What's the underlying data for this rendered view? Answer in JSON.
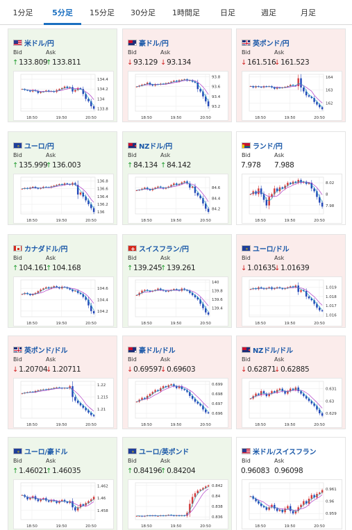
{
  "tabs": [
    {
      "label": "1分足",
      "active": false
    },
    {
      "label": "5分足",
      "active": true
    },
    {
      "label": "15分足",
      "active": false
    },
    {
      "label": "30分足",
      "active": false
    },
    {
      "label": "1時間足",
      "active": false
    },
    {
      "label": "日足",
      "active": false
    },
    {
      "label": "週足",
      "active": false
    },
    {
      "label": "月足",
      "active": false
    }
  ],
  "labels": {
    "bid": "Bid",
    "ask": "Ask"
  },
  "colors": {
    "accent": "#1a6fc0",
    "up_bg": "#eef6ea",
    "down_bg": "#fbeceb",
    "up_arrow": "#1c9a2a",
    "down_arrow": "#d02020",
    "up_candle": "#d23a3a",
    "down_candle": "#2247b8",
    "ma1": "#b03cc8",
    "ma2": "#18a0b8"
  },
  "cards": [
    {
      "pair": "米ドル/円",
      "flag": "us",
      "state": "up",
      "bid_dir": "up",
      "ask_dir": "up",
      "bid": "133.809",
      "ask": "133.811",
      "chart": {
        "xlabels": [
          "18:50",
          "19:50",
          "20:50"
        ],
        "ylabels": [
          "134.4",
          "134.2",
          "134",
          "133.8"
        ],
        "ylim": [
          133.75,
          134.5
        ],
        "closes": [
          134.2,
          134.18,
          134.17,
          134.15,
          134.18,
          134.16,
          134.12,
          134.14,
          134.15,
          134.17,
          134.15,
          134.16,
          134.14,
          134.18,
          134.2,
          134.22,
          134.25,
          134.22,
          134.24,
          134.15,
          134.18,
          134.22,
          134.2,
          134.1,
          134.0,
          133.95,
          133.85,
          133.8
        ]
      }
    },
    {
      "pair": "豪ドル/円",
      "flag": "au",
      "state": "down",
      "bid_dir": "down",
      "ask_dir": "down",
      "bid": "93.129",
      "ask": "93.134",
      "chart": {
        "xlabels": [
          "18:50",
          "19:50",
          "20:50"
        ],
        "ylabels": [
          "93.8",
          "93.6",
          "93.4",
          "93.2"
        ],
        "ylim": [
          93.1,
          93.85
        ],
        "closes": [
          93.6,
          93.62,
          93.64,
          93.65,
          93.68,
          93.64,
          93.62,
          93.65,
          93.64,
          93.66,
          93.65,
          93.67,
          93.68,
          93.7,
          93.72,
          93.7,
          93.73,
          93.74,
          93.75,
          93.72,
          93.73,
          93.7,
          93.68,
          93.55,
          93.5,
          93.4,
          93.3,
          93.2
        ]
      }
    },
    {
      "pair": "英ポンド/円",
      "flag": "gb",
      "state": "down",
      "bid_dir": "down",
      "ask_dir": "down",
      "bid": "161.516",
      "ask": "161.523",
      "chart": {
        "xlabels": [
          "18:50",
          "19:50",
          "20:50"
        ],
        "ylabels": [
          "164",
          "163",
          "162"
        ],
        "ylim": [
          161.4,
          164.2
        ],
        "closes": [
          163.3,
          163.2,
          163.3,
          163.25,
          163.2,
          163.3,
          163.25,
          163.3,
          163.2,
          163.1,
          163.2,
          163.15,
          163.2,
          163.25,
          163.3,
          163.4,
          163.35,
          163.3,
          163.9,
          163.2,
          162.9,
          162.6,
          162.5,
          162.4,
          162.1,
          161.9,
          161.7,
          161.55
        ]
      }
    },
    {
      "pair": "ユーロ/円",
      "flag": "eu",
      "state": "up",
      "bid_dir": "up",
      "ask_dir": "up",
      "bid": "135.999",
      "ask": "136.003",
      "chart": {
        "xlabels": [
          "18:50",
          "19:50",
          "20:50"
        ],
        "ylabels": [
          "136.8",
          "136.6",
          "136.4",
          "136.2",
          "136"
        ],
        "ylim": [
          135.95,
          136.9
        ],
        "closes": [
          136.6,
          136.62,
          136.6,
          136.63,
          136.65,
          136.62,
          136.6,
          136.62,
          136.65,
          136.64,
          136.63,
          136.66,
          136.68,
          136.7,
          136.72,
          136.7,
          136.74,
          136.72,
          136.7,
          136.75,
          136.7,
          136.45,
          136.5,
          136.4,
          136.3,
          136.2,
          136.1,
          136.0
        ]
      }
    },
    {
      "pair": "NZドル/円",
      "flag": "nz",
      "state": "up",
      "bid_dir": "up",
      "ask_dir": "up",
      "bid": "84.134",
      "ask": "84.142",
      "chart": {
        "xlabels": [
          "18:50",
          "19:50",
          "20:50"
        ],
        "ylabels": [
          "84.6",
          "84.4",
          "84.2"
        ],
        "ylim": [
          84.1,
          84.8
        ],
        "closes": [
          84.55,
          84.56,
          84.58,
          84.6,
          84.57,
          84.55,
          84.58,
          84.6,
          84.62,
          84.6,
          84.58,
          84.6,
          84.62,
          84.65,
          84.68,
          84.65,
          84.67,
          84.7,
          84.72,
          84.68,
          84.6,
          84.62,
          84.5,
          84.45,
          84.4,
          84.3,
          84.2,
          84.14
        ]
      }
    },
    {
      "pair": "ランド/円",
      "flag": "za",
      "state": "flat",
      "bid_dir": "none",
      "ask_dir": "none",
      "bid": "7.978",
      "ask": "7.988",
      "chart": {
        "xlabels": [
          "18:50",
          "19:50",
          "20:50"
        ],
        "ylabels": [
          "8.02",
          "8",
          "7.98"
        ],
        "ylim": [
          7.965,
          8.03
        ],
        "closes": [
          8.0,
          8.005,
          8.0,
          8.01,
          8.0,
          7.99,
          7.98,
          7.995,
          8.0,
          8.01,
          8.005,
          8.012,
          8.01,
          8.015,
          8.02,
          8.018,
          8.022,
          8.02,
          8.025,
          8.02,
          8.022,
          8.018,
          8.02,
          8.01,
          8.005,
          7.995,
          7.985,
          7.978
        ]
      }
    },
    {
      "pair": "カナダドル/円",
      "flag": "ca",
      "state": "up",
      "bid_dir": "up",
      "ask_dir": "up",
      "bid": "104.161",
      "ask": "104.168",
      "chart": {
        "xlabels": [
          "18:50",
          "19:50",
          "20:50"
        ],
        "ylabels": [
          "104.6",
          "104.4",
          "104.2"
        ],
        "ylim": [
          104.1,
          104.75
        ],
        "closes": [
          104.5,
          104.52,
          104.5,
          104.48,
          104.5,
          104.52,
          104.55,
          104.58,
          104.6,
          104.62,
          104.6,
          104.62,
          104.64,
          104.62,
          104.6,
          104.63,
          104.62,
          104.6,
          104.58,
          104.55,
          104.56,
          104.52,
          104.5,
          104.45,
          104.4,
          104.3,
          104.2,
          104.16
        ]
      }
    },
    {
      "pair": "スイスフラン/円",
      "flag": "ch",
      "state": "up",
      "bid_dir": "up",
      "ask_dir": "up",
      "bid": "139.245",
      "ask": "139.261",
      "chart": {
        "xlabels": [
          "18:50",
          "19:50",
          "20:50"
        ],
        "ylabels": [
          "140",
          "139.8",
          "139.6",
          "139.4"
        ],
        "ylim": [
          139.2,
          140.05
        ],
        "closes": [
          139.7,
          139.75,
          139.8,
          139.82,
          139.8,
          139.78,
          139.8,
          139.82,
          139.85,
          139.82,
          139.8,
          139.78,
          139.8,
          139.82,
          139.84,
          139.82,
          139.8,
          139.85,
          139.82,
          139.8,
          139.75,
          139.7,
          139.65,
          139.6,
          139.5,
          139.4,
          139.3,
          139.25
        ]
      }
    },
    {
      "pair": "ユーロ/ドル",
      "flag": "eu",
      "state": "down",
      "bid_dir": "down",
      "ask_dir": "down",
      "bid": "1.01635",
      "ask": "1.01639",
      "chart": {
        "xlabels": [
          "18:50",
          "19:50",
          "20:50"
        ],
        "ylabels": [
          "1.019",
          "1.018",
          "1.017",
          "1.016"
        ],
        "ylim": [
          1.0158,
          1.0198
        ],
        "closes": [
          1.0188,
          1.0189,
          1.0188,
          1.019,
          1.0189,
          1.0188,
          1.0189,
          1.019,
          1.0188,
          1.0189,
          1.019,
          1.0189,
          1.0188,
          1.0189,
          1.019,
          1.0191,
          1.019,
          1.0192,
          1.0185,
          1.0187,
          1.0186,
          1.018,
          1.0178,
          1.0176,
          1.0172,
          1.0168,
          1.0165,
          1.0164
        ]
      }
    },
    {
      "pair": "英ポンド/ドル",
      "flag": "gb",
      "state": "down",
      "bid_dir": "down",
      "ask_dir": "down",
      "bid": "1.20704",
      "ask": "1.20711",
      "chart": {
        "xlabels": [
          "18:50",
          "19:50",
          "20:50"
        ],
        "ylabels": [
          "1.22",
          "1.215",
          "1.21"
        ],
        "ylim": [
          1.2062,
          1.2215
        ],
        "closes": [
          1.2165,
          1.2168,
          1.217,
          1.2172,
          1.217,
          1.2175,
          1.2178,
          1.218,
          1.2182,
          1.218,
          1.2184,
          1.2185,
          1.2188,
          1.219,
          1.2188,
          1.2185,
          1.2188,
          1.2186,
          1.2195,
          1.215,
          1.2135,
          1.2125,
          1.2115,
          1.2105,
          1.2095,
          1.2085,
          1.2075,
          1.207
        ]
      }
    },
    {
      "pair": "豪ドル/ドル",
      "flag": "au",
      "state": "down",
      "bid_dir": "down",
      "ask_dir": "down",
      "bid": "0.69597",
      "ask": "0.69603",
      "chart": {
        "xlabels": [
          "18:50",
          "19:50",
          "20:50"
        ],
        "ylabels": [
          "0.699",
          "0.698",
          "0.697",
          "0.696"
        ],
        "ylim": [
          0.6955,
          0.6993
        ],
        "closes": [
          0.6972,
          0.6974,
          0.6976,
          0.6975,
          0.6978,
          0.698,
          0.6982,
          0.6984,
          0.6983,
          0.6986,
          0.6988,
          0.6987,
          0.6989,
          0.699,
          0.6988,
          0.6986,
          0.6988,
          0.6985,
          0.6984,
          0.6982,
          0.6978,
          0.6975,
          0.6972,
          0.697,
          0.6968,
          0.6964,
          0.6961,
          0.696
        ]
      }
    },
    {
      "pair": "NZドル/ドル",
      "flag": "nz",
      "state": "down",
      "bid_dir": "down",
      "ask_dir": "down",
      "bid": "0.62871",
      "ask": "0.62885",
      "chart": {
        "xlabels": [
          "18:50",
          "19:50",
          "20:50"
        ],
        "ylabels": [
          "0.631",
          "0.63",
          "0.629"
        ],
        "ylim": [
          0.6286,
          0.6316
        ],
        "closes": [
          0.6302,
          0.6304,
          0.6306,
          0.6305,
          0.6308,
          0.6306,
          0.6304,
          0.6306,
          0.6308,
          0.6307,
          0.6309,
          0.631,
          0.6308,
          0.6306,
          0.6308,
          0.631,
          0.6309,
          0.6311,
          0.6308,
          0.6306,
          0.6304,
          0.6302,
          0.63,
          0.6298,
          0.6296,
          0.6293,
          0.629,
          0.6288
        ]
      }
    },
    {
      "pair": "ユーロ/豪ドル",
      "flag": "eu",
      "state": "up",
      "bid_dir": "up",
      "ask_dir": "up",
      "bid": "1.46021",
      "ask": "1.46035",
      "chart": {
        "xlabels": [
          "18:50",
          "19:50",
          "20:50"
        ],
        "ylabels": [
          "1.462",
          "1.46",
          "1.458"
        ],
        "ylim": [
          1.4565,
          1.4625
        ],
        "closes": [
          1.4605,
          1.4602,
          1.4598,
          1.46,
          1.4603,
          1.4598,
          1.4595,
          1.4598,
          1.46,
          1.4596,
          1.4594,
          1.4597,
          1.4595,
          1.4592,
          1.4595,
          1.4597,
          1.4594,
          1.4592,
          1.4595,
          1.4585,
          1.458,
          1.4585,
          1.459,
          1.4588,
          1.4592,
          1.4595,
          1.4598,
          1.4602
        ]
      }
    },
    {
      "pair": "ユーロ/英ポンド",
      "flag": "eu",
      "state": "up",
      "bid_dir": "up",
      "ask_dir": "up",
      "bid": "0.84196",
      "ask": "0.84204",
      "chart": {
        "xlabels": [
          "18:50",
          "19:50",
          "20:50"
        ],
        "ylabels": [
          "0.842",
          "0.84",
          "0.838",
          "0.836"
        ],
        "ylim": [
          0.8355,
          0.8425
        ],
        "closes": [
          0.8362,
          0.8362,
          0.8361,
          0.8362,
          0.8363,
          0.8362,
          0.8363,
          0.8362,
          0.8362,
          0.8363,
          0.8362,
          0.8363,
          0.8364,
          0.8363,
          0.8362,
          0.8363,
          0.8362,
          0.8363,
          0.8362,
          0.8368,
          0.8385,
          0.8398,
          0.8405,
          0.841,
          0.8412,
          0.8415,
          0.8418,
          0.842
        ]
      }
    },
    {
      "pair": "米ドル/スイスフラン",
      "flag": "us",
      "state": "flat",
      "bid_dir": "none",
      "ask_dir": "none",
      "bid": "0.96083",
      "ask": "0.96098",
      "chart": {
        "xlabels": [
          "18:50",
          "19:50",
          "20:50"
        ],
        "ylabels": [
          "0.961",
          "0.96",
          "0.959"
        ],
        "ylim": [
          0.9585,
          0.9615
        ],
        "closes": [
          0.9604,
          0.9602,
          0.96,
          0.9598,
          0.9596,
          0.9595,
          0.9593,
          0.9595,
          0.9597,
          0.9594,
          0.9592,
          0.9593,
          0.9591,
          0.9594,
          0.9596,
          0.9592,
          0.959,
          0.9592,
          0.9595,
          0.9597,
          0.96,
          0.9598,
          0.9602,
          0.9605,
          0.9603,
          0.9606,
          0.9607,
          0.9609
        ]
      }
    }
  ]
}
